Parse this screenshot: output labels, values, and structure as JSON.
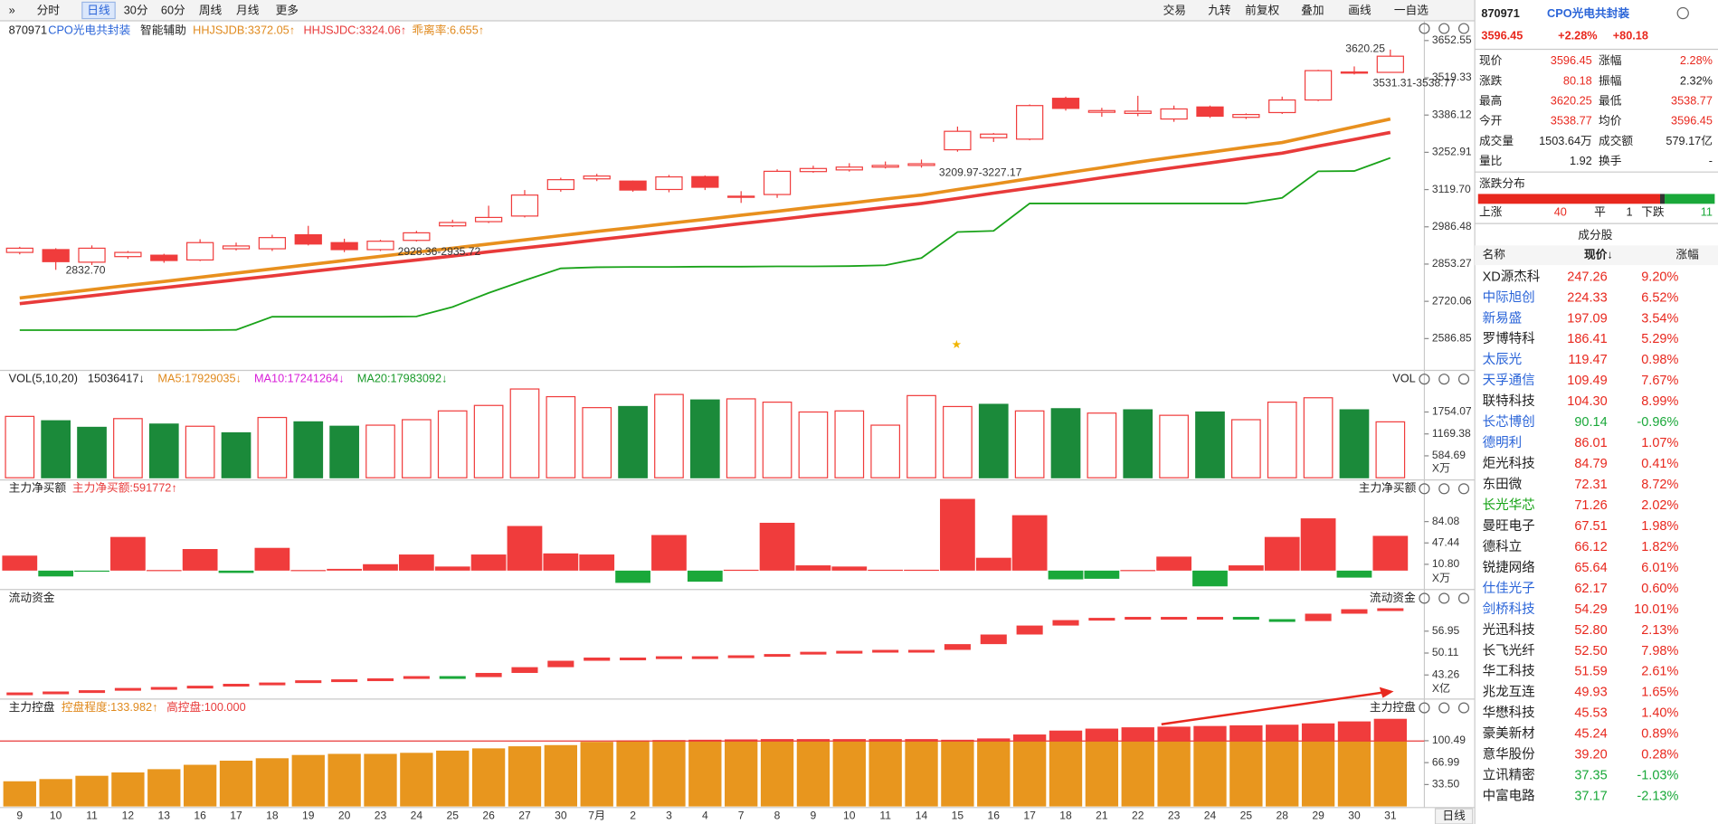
{
  "toolbar": {
    "periods": [
      "分时",
      "日线",
      "30分",
      "60分",
      "周线",
      "月线",
      "更多"
    ],
    "tools": [
      "交易",
      "九转",
      "前复权",
      "叠加",
      "画线",
      "一自选"
    ]
  },
  "main": {
    "code": "870971",
    "name": "CPO光电共封装",
    "assist": "智能辅助",
    "indicators": [
      {
        "text": "HHJSJDB:3372.05↑",
        "color": "#e08a1e"
      },
      {
        "text": "HHJSJDC:3324.06↑",
        "color": "#e83a3a"
      },
      {
        "text": "乖离率:6.655↑",
        "color": "#e08a1e"
      }
    ],
    "yticks": [
      3652.55,
      3519.33,
      3386.12,
      3252.91,
      {
        "value": 3119.7,
        "label": "3119.70"
      },
      2986.48,
      2853.27,
      2720.06,
      2586.85
    ],
    "annotations": [
      "3620.25",
      "3531.31-3538.77",
      "3209.97-3227.17",
      "2928.36-2935.72",
      "2832.70"
    ],
    "candles": [
      [
        2895,
        2910,
        2915,
        2888
      ],
      [
        2905,
        2862,
        2910,
        2832.7
      ],
      [
        2860,
        2910,
        2920,
        2850
      ],
      [
        2880,
        2895,
        2900,
        2872
      ],
      [
        2885,
        2866,
        2890,
        2858
      ],
      [
        2868,
        2930,
        2942,
        2864
      ],
      [
        2908,
        2918,
        2930,
        2902
      ],
      [
        2908,
        2948,
        2958,
        2900
      ],
      [
        2958,
        2925,
        2990,
        2920
      ],
      [
        2930,
        2905,
        2944,
        2896
      ],
      [
        2905,
        2935,
        2940,
        2900
      ],
      [
        2938,
        2965,
        2972,
        2934
      ],
      [
        2990,
        3002,
        3012,
        2986
      ],
      [
        3005,
        3020,
        3062,
        3000
      ],
      [
        3025,
        3100,
        3118,
        3020
      ],
      [
        3120,
        3155,
        3162,
        3112
      ],
      [
        3158,
        3168,
        3176,
        3150
      ],
      [
        3150,
        3118,
        3152,
        3112
      ],
      [
        3120,
        3165,
        3172,
        3110
      ],
      [
        3166,
        3128,
        3170,
        3118
      ],
      [
        3092,
        3096,
        3114,
        3072
      ],
      [
        3102,
        3185,
        3192,
        3090
      ],
      [
        3184,
        3195,
        3205,
        3180
      ],
      [
        3190,
        3200,
        3214,
        3184
      ],
      [
        3200,
        3206,
        3220,
        3195
      ],
      [
        3206,
        3212,
        3227,
        3198
      ],
      [
        3262,
        3328,
        3345,
        3255
      ],
      [
        3305,
        3318,
        3322,
        3290
      ],
      [
        3300,
        3420,
        3424,
        3296
      ],
      [
        3446,
        3410,
        3452,
        3402
      ],
      [
        3396,
        3402,
        3412,
        3380
      ],
      [
        3392,
        3400,
        3455,
        3382
      ],
      [
        3372,
        3408,
        3420,
        3362
      ],
      [
        3415,
        3382,
        3420,
        3376
      ],
      [
        3378,
        3388,
        3392,
        3372
      ],
      [
        3395,
        3440,
        3452,
        3390
      ],
      [
        3440,
        3545,
        3548,
        3436
      ],
      [
        3536,
        3540,
        3560,
        3531.31
      ],
      [
        3538.77,
        3596.45,
        3620.25,
        3538.77
      ]
    ],
    "lines": [
      {
        "color": "#1aa31a",
        "width": 1.5,
        "values": [
          2617,
          2617,
          2617,
          2617,
          2617,
          2617,
          2618,
          2665,
          2665,
          2665,
          2665,
          2666,
          2700,
          2750,
          2795,
          2838,
          2842,
          2843,
          2843,
          2844,
          2844,
          2845,
          2845,
          2846,
          2849,
          2875,
          2968,
          2972,
          3070,
          3070,
          3070,
          3070,
          3070,
          3070,
          3070,
          3090,
          3185,
          3186,
          3233
        ]
      },
      {
        "color": "#e8901e",
        "width": 3,
        "values": [
          2732,
          2747,
          2762,
          2777,
          2791,
          2806,
          2821,
          2836,
          2851,
          2866,
          2881,
          2896,
          2910,
          2925,
          2940,
          2955,
          2970,
          2984,
          2999,
          3013,
          3028,
          3042,
          3057,
          3071,
          3086,
          3100,
          3120,
          3139,
          3159,
          3179,
          3198,
          3218,
          3236,
          3253,
          3271,
          3288,
          3316,
          3344,
          3372
        ]
      },
      {
        "color": "#e83a3a",
        "width": 3,
        "values": [
          2712,
          2726,
          2740,
          2755,
          2769,
          2783,
          2797,
          2811,
          2826,
          2840,
          2854,
          2868,
          2882,
          2897,
          2911,
          2925,
          2940,
          2954,
          2969,
          2983,
          2998,
          3012,
          3027,
          3041,
          3056,
          3070,
          3088,
          3107,
          3125,
          3143,
          3162,
          3180,
          3198,
          3215,
          3233,
          3250,
          3275,
          3299,
          3324
        ]
      }
    ]
  },
  "vol": {
    "title": "VOL(5,10,20)",
    "items": [
      {
        "text": "15036417↓",
        "color": "#222222"
      },
      {
        "text": "MA5:17929035↓",
        "color": "#e08a1e"
      },
      {
        "text": "MA10:17241264↓",
        "color": "#d81fd8"
      },
      {
        "text": "MA20:17983092↓",
        "color": "#1a9a2a"
      }
    ],
    "right": "VOL",
    "yticks": [
      1754.07,
      1169.38,
      584.69
    ],
    "unit": "X万",
    "values": [
      1637,
      1520,
      1345,
      1578,
      1432,
      1374,
      1198,
      1608,
      1491,
      1374,
      1403,
      1549,
      1783,
      1929,
      2368,
      2163,
      1871,
      1900,
      2222,
      2075,
      2105,
      2017,
      1754,
      1783,
      1403,
      2192,
      1900,
      1958,
      1783,
      1842,
      1725,
      1812,
      1666,
      1754,
      1549,
      2017,
      2134,
      1812,
      1491
    ],
    "colors": [
      "#f03c3c",
      "#1b8a3a",
      "#1b8a3a",
      "#f03c3c",
      "#1b8a3a",
      "#f03c3c",
      "#1b8a3a",
      "#f03c3c",
      "#1b8a3a",
      "#1b8a3a",
      "#f03c3c",
      "#f03c3c",
      "#f03c3c",
      "#f03c3c",
      "#f03c3c",
      "#f03c3c",
      "#f03c3c",
      "#1b8a3a",
      "#f03c3c",
      "#1b8a3a",
      "#f03c3c",
      "#f03c3c",
      "#f03c3c",
      "#f03c3c",
      "#f03c3c",
      "#f03c3c",
      "#f03c3c",
      "#1b8a3a",
      "#f03c3c",
      "#1b8a3a",
      "#f03c3c",
      "#1b8a3a",
      "#f03c3c",
      "#1b8a3a",
      "#f03c3c",
      "#f03c3c",
      "#f03c3c",
      "#1b8a3a",
      "#f03c3c"
    ]
  },
  "net": {
    "title": "主力净买额",
    "item": "主力净买额:591772↑",
    "right": "主力净买额",
    "yticks": [
      84.08,
      47.44,
      {
        "value": 10.8,
        "label": "10.80"
      }
    ],
    "unit": "X万",
    "values": [
      25.7,
      -10,
      -1,
      57.7,
      1,
      37,
      -4,
      39,
      1,
      3,
      11,
      27.6,
      7,
      27.6,
      76.5,
      29.5,
      27.6,
      -21,
      61,
      -19,
      1.5,
      82,
      9,
      7,
      1.5,
      1.5,
      123,
      22,
      95,
      -15,
      -14,
      1,
      24,
      -27,
      9,
      57.7,
      89.6,
      -12,
      59.6
    ]
  },
  "liq": {
    "title": "流动资金",
    "right": "流动资金",
    "yticks": [
      56.95,
      50.11,
      43.26
    ],
    "unit": "X亿",
    "values": [
      37.8,
      38.1,
      38.5,
      39.2,
      39.5,
      39.9,
      40.5,
      40.9,
      41.6,
      41.9,
      42.2,
      42.9,
      42.6,
      43.9,
      45.7,
      47.7,
      48.7,
      48.7,
      49.1,
      49.1,
      49.4,
      49.8,
      50.5,
      50.8,
      51.1,
      51.1,
      52.9,
      55.9,
      58.7,
      60.4,
      61.1,
      61.4,
      61.4,
      61.4,
      60.7,
      60.1,
      62.4,
      63.8,
      64.1
    ]
  },
  "ctrl": {
    "title": "主力控盘",
    "items": [
      "控盘程度:133.982↑",
      "高控盘:100.000"
    ],
    "right": "主力控盘",
    "yticks": [
      100.49,
      66.99,
      {
        "value": 33.5,
        "label": "33.50"
      }
    ],
    "threshold": 100,
    "values": [
      38.5,
      41.9,
      46.9,
      52,
      57,
      63.7,
      70,
      73.7,
      78.7,
      80.4,
      80.4,
      82,
      85.4,
      88.8,
      92,
      93.8,
      98.8,
      101,
      101.5,
      102,
      102.5,
      103,
      103,
      103,
      103,
      103,
      102,
      104,
      110,
      116,
      119,
      121,
      122,
      123,
      124,
      125,
      127,
      130,
      133.982
    ]
  },
  "dates": [
    "9",
    "10",
    "11",
    "12",
    "13",
    "16",
    "17",
    "18",
    "19",
    "20",
    "23",
    "24",
    "25",
    "26",
    "27",
    "30",
    "7月",
    "2",
    "3",
    "4",
    "7",
    "8",
    "9",
    "10",
    "11",
    "14",
    "15",
    "16",
    "17",
    "18",
    "21",
    "22",
    "23",
    "24",
    "25",
    "28",
    "29",
    "30",
    "31"
  ],
  "period_label": "日线",
  "quote": {
    "code": "870971",
    "name": "CPO光电共封装",
    "price": "3596.45",
    "pct": "+2.28%",
    "chg": "+80.18",
    "rows": [
      [
        "现价",
        "3596.45",
        "涨幅",
        "2.28%"
      ],
      [
        "涨跌",
        "80.18",
        "振幅",
        "2.32%"
      ],
      [
        "最高",
        "3620.25",
        "最低",
        "3538.77"
      ],
      [
        "今开",
        "3538.77",
        "均价",
        "3596.45"
      ],
      [
        "成交量",
        "1503.64万",
        "成交额",
        "579.17亿"
      ],
      [
        "量比",
        "1.92",
        "换手",
        "-"
      ]
    ],
    "dist_title": "涨跌分布",
    "dist": [
      {
        "label": "上涨",
        "count": 40
      },
      {
        "label": "平",
        "count": 1
      },
      {
        "label": "下跌",
        "count": 11
      }
    ],
    "list_title": "成分股",
    "headers": [
      "名称",
      "现价↓",
      "涨幅"
    ],
    "stocks": [
      {
        "name": "XD源杰科",
        "price": "247.26",
        "pct": "9.20%",
        "color": "#222222"
      },
      {
        "name": "中际旭创",
        "price": "224.33",
        "pct": "6.52%",
        "color": "#2a64d8"
      },
      {
        "name": "新易盛",
        "price": "197.09",
        "pct": "3.54%",
        "color": "#2a64d8"
      },
      {
        "name": "罗博特科",
        "price": "186.41",
        "pct": "5.29%",
        "color": "#222222"
      },
      {
        "name": "太辰光",
        "price": "119.47",
        "pct": "0.98%",
        "color": "#2a64d8"
      },
      {
        "name": "天孚通信",
        "price": "109.49",
        "pct": "7.67%",
        "color": "#2a64d8"
      },
      {
        "name": "联特科技",
        "price": "104.30",
        "pct": "8.99%",
        "color": "#222222"
      },
      {
        "name": "长芯博创",
        "price": "90.14",
        "pct": "-0.96%",
        "color": "#2a64d8"
      },
      {
        "name": "德明利",
        "price": "86.01",
        "pct": "1.07%",
        "color": "#2a64d8"
      },
      {
        "name": "炬光科技",
        "price": "84.79",
        "pct": "0.41%",
        "color": "#222222"
      },
      {
        "name": "东田微",
        "price": "72.31",
        "pct": "8.72%",
        "color": "#222222"
      },
      {
        "name": "长光华芯",
        "price": "71.26",
        "pct": "2.02%",
        "color": "#14a214"
      },
      {
        "name": "曼旺电子",
        "price": "67.51",
        "pct": "1.98%",
        "color": "#222222"
      },
      {
        "name": "德科立",
        "price": "66.12",
        "pct": "1.82%",
        "color": "#222222"
      },
      {
        "name": "锐捷网络",
        "price": "65.64",
        "pct": "6.01%",
        "color": "#222222"
      },
      {
        "name": "仕佳光子",
        "price": "62.17",
        "pct": "0.60%",
        "color": "#2a64d8"
      },
      {
        "name": "剑桥科技",
        "price": "54.29",
        "pct": "10.01%",
        "color": "#2a64d8"
      },
      {
        "name": "光迅科技",
        "price": "52.80",
        "pct": "2.13%",
        "color": "#222222"
      },
      {
        "name": "长飞光纤",
        "price": "52.50",
        "pct": "7.98%",
        "color": "#222222"
      },
      {
        "name": "华工科技",
        "price": "51.59",
        "pct": "2.61%",
        "color": "#222222"
      },
      {
        "name": "兆龙互连",
        "price": "49.93",
        "pct": "1.65%",
        "color": "#222222"
      },
      {
        "name": "华懋科技",
        "price": "45.53",
        "pct": "1.40%",
        "color": "#222222"
      },
      {
        "name": "豪美新材",
        "price": "45.24",
        "pct": "0.89%",
        "color": "#222222"
      },
      {
        "name": "意华股份",
        "price": "39.20",
        "pct": "0.28%",
        "color": "#222222"
      },
      {
        "name": "立讯精密",
        "price": "37.35",
        "pct": "-1.03%",
        "color": "#222222"
      },
      {
        "name": "中富电路",
        "price": "37.17",
        "pct": "-2.13%",
        "color": "#222222"
      }
    ]
  }
}
